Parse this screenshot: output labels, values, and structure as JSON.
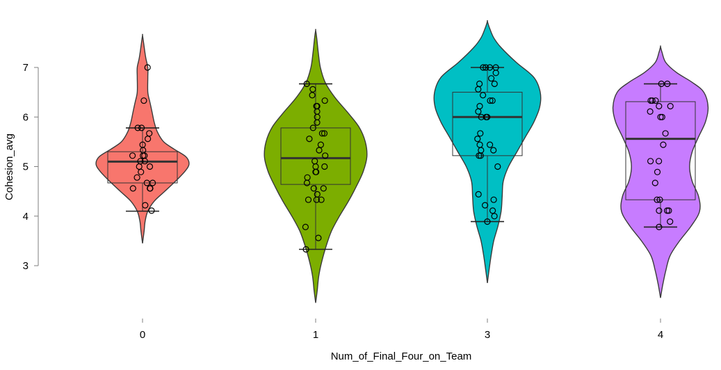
{
  "chart_data": {
    "type": "violin",
    "xlabel": "Num_of_Final_Four_on_Team",
    "ylabel": "Cohesion_avg",
    "ylim": [
      2.2,
      7.9
    ],
    "yticks": [
      3,
      4,
      5,
      6,
      7
    ],
    "categories": [
      "0",
      "1",
      "3",
      "4"
    ],
    "colors": [
      "#F8766D",
      "#7CAE00",
      "#00BFC4",
      "#C77CFF"
    ],
    "grid": false,
    "legend": "none",
    "groups": [
      {
        "category": "0",
        "box": {
          "whisker_low": 4.1,
          "q1": 4.67,
          "median": 5.1,
          "q3": 5.3,
          "whisker_high": 5.78
        },
        "density": [
          [
            3.45,
            0
          ],
          [
            3.7,
            0.03
          ],
          [
            3.9,
            0.05
          ],
          [
            4.1,
            0.1
          ],
          [
            4.3,
            0.22
          ],
          [
            4.5,
            0.42
          ],
          [
            4.7,
            0.62
          ],
          [
            4.9,
            0.8
          ],
          [
            5.05,
            0.88
          ],
          [
            5.2,
            0.82
          ],
          [
            5.35,
            0.6
          ],
          [
            5.5,
            0.4
          ],
          [
            5.7,
            0.28
          ],
          [
            5.9,
            0.22
          ],
          [
            6.1,
            0.18
          ],
          [
            6.3,
            0.14
          ],
          [
            6.5,
            0.1
          ],
          [
            6.8,
            0.1
          ],
          [
            7.0,
            0.1
          ],
          [
            7.2,
            0.06
          ],
          [
            7.5,
            0.02
          ],
          [
            7.65,
            0
          ]
        ],
        "points": [
          7.0,
          6.33,
          5.78,
          5.78,
          5.67,
          5.56,
          5.44,
          5.33,
          5.22,
          5.22,
          5.22,
          5.11,
          5.11,
          5.0,
          5.0,
          4.89,
          4.78,
          4.67,
          4.67,
          4.56,
          4.56,
          4.56,
          4.22,
          4.11
        ]
      },
      {
        "category": "1",
        "box": {
          "whisker_low": 3.33,
          "q1": 4.64,
          "median": 5.17,
          "q3": 5.78,
          "whisker_high": 6.67
        },
        "density": [
          [
            2.25,
            0
          ],
          [
            2.5,
            0.03
          ],
          [
            2.8,
            0.06
          ],
          [
            3.1,
            0.12
          ],
          [
            3.4,
            0.2
          ],
          [
            3.7,
            0.3
          ],
          [
            4.0,
            0.45
          ],
          [
            4.3,
            0.62
          ],
          [
            4.6,
            0.77
          ],
          [
            4.9,
            0.9
          ],
          [
            5.2,
            0.97
          ],
          [
            5.5,
            0.94
          ],
          [
            5.8,
            0.82
          ],
          [
            6.1,
            0.6
          ],
          [
            6.4,
            0.36
          ],
          [
            6.7,
            0.18
          ],
          [
            7.0,
            0.09
          ],
          [
            7.3,
            0.05
          ],
          [
            7.6,
            0.02
          ],
          [
            7.75,
            0
          ]
        ],
        "points": [
          6.67,
          6.56,
          6.44,
          6.33,
          6.22,
          6.22,
          6.11,
          6.0,
          5.89,
          5.78,
          5.67,
          5.67,
          5.56,
          5.44,
          5.33,
          5.22,
          5.11,
          5.0,
          5.0,
          4.89,
          4.89,
          4.78,
          4.67,
          4.56,
          4.56,
          4.44,
          4.33,
          4.33,
          4.33,
          3.78,
          3.56,
          3.33
        ]
      },
      {
        "category": "3",
        "box": {
          "whisker_low": 3.89,
          "q1": 5.22,
          "median": 6.0,
          "q3": 6.5,
          "whisker_high": 7.0
        },
        "density": [
          [
            2.65,
            0
          ],
          [
            2.9,
            0.03
          ],
          [
            3.2,
            0.07
          ],
          [
            3.5,
            0.12
          ],
          [
            3.8,
            0.2
          ],
          [
            4.1,
            0.26
          ],
          [
            4.4,
            0.28
          ],
          [
            4.7,
            0.3
          ],
          [
            5.0,
            0.4
          ],
          [
            5.3,
            0.56
          ],
          [
            5.6,
            0.72
          ],
          [
            5.9,
            0.88
          ],
          [
            6.2,
            0.99
          ],
          [
            6.5,
            1.0
          ],
          [
            6.8,
            0.88
          ],
          [
            7.1,
            0.55
          ],
          [
            7.4,
            0.26
          ],
          [
            7.6,
            0.12
          ],
          [
            7.8,
            0.04
          ],
          [
            7.93,
            0
          ]
        ],
        "points": [
          7.0,
          7.0,
          7.0,
          7.0,
          6.89,
          6.78,
          6.67,
          6.67,
          6.56,
          6.44,
          6.33,
          6.33,
          6.22,
          6.11,
          6.0,
          6.0,
          6.0,
          5.67,
          5.56,
          5.44,
          5.44,
          5.33,
          5.33,
          5.22,
          5.22,
          5.0,
          4.44,
          4.33,
          4.22,
          4.11,
          4.0,
          3.89
        ]
      },
      {
        "category": "4",
        "box": {
          "whisker_low": 3.78,
          "q1": 4.33,
          "median": 5.56,
          "q3": 6.31,
          "whisker_high": 6.67
        },
        "density": [
          [
            2.35,
            0
          ],
          [
            2.6,
            0.04
          ],
          [
            2.9,
            0.1
          ],
          [
            3.2,
            0.18
          ],
          [
            3.5,
            0.36
          ],
          [
            3.8,
            0.58
          ],
          [
            4.1,
            0.74
          ],
          [
            4.4,
            0.72
          ],
          [
            4.7,
            0.6
          ],
          [
            5.0,
            0.55
          ],
          [
            5.3,
            0.6
          ],
          [
            5.6,
            0.72
          ],
          [
            5.9,
            0.85
          ],
          [
            6.2,
            0.9
          ],
          [
            6.5,
            0.82
          ],
          [
            6.7,
            0.6
          ],
          [
            6.9,
            0.3
          ],
          [
            7.1,
            0.1
          ],
          [
            7.3,
            0.03
          ],
          [
            7.42,
            0
          ]
        ],
        "points": [
          6.67,
          6.67,
          6.33,
          6.33,
          6.33,
          6.22,
          6.22,
          6.11,
          6.0,
          6.0,
          5.67,
          5.44,
          5.11,
          5.11,
          4.89,
          4.67,
          4.33,
          4.33,
          4.11,
          4.11,
          4.11,
          3.89,
          3.78
        ]
      }
    ]
  }
}
